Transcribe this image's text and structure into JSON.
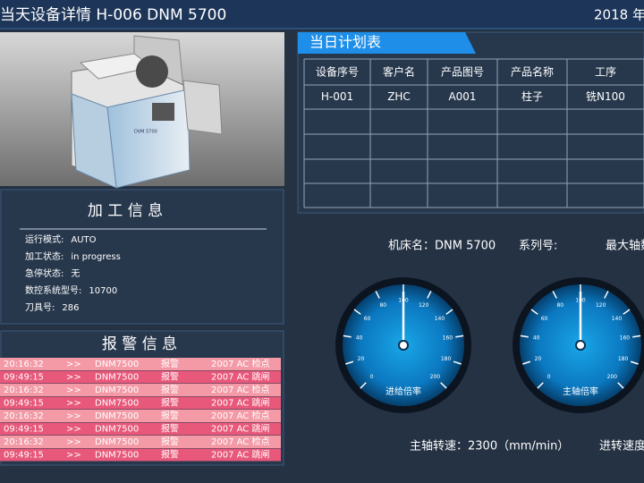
{
  "header": {
    "title": "当天设备详情  H-006   DNM 5700",
    "date": "2018 年"
  },
  "processing_info": {
    "title": "加 工 信 息",
    "items": [
      [
        "运行模式:",
        "AUTO"
      ],
      [
        "加工状态:",
        "in progress"
      ],
      [
        "急停状态:",
        "无"
      ],
      [
        "数控系统型号:",
        "10700"
      ],
      [
        "刀具号:",
        "286"
      ]
    ]
  },
  "alarm_info": {
    "title": "报 警 信 息",
    "rows": [
      [
        "20:16:32",
        ">>",
        "DNM7500",
        "报警",
        "2007  AC 检点"
      ],
      [
        "09:49:15",
        ">>",
        "DNM7500",
        "报警",
        "2007  AC 跳闸"
      ],
      [
        "20:16:32",
        ">>",
        "DNM7500",
        "报警",
        "2007  AC 检点"
      ],
      [
        "09:49:15",
        ">>",
        "DNM7500",
        "报警",
        "2007  AC 跳闸"
      ],
      [
        "20:16:32",
        ">>",
        "DNM7500",
        "报警",
        "2007  AC 检点"
      ],
      [
        "09:49:15",
        ">>",
        "DNM7500",
        "报警",
        "2007  AC 跳闸"
      ],
      [
        "20:16:32",
        ">>",
        "DNM7500",
        "报警",
        "2007  AC 检点"
      ],
      [
        "09:49:15",
        ">>",
        "DNM7500",
        "报警",
        "2007  AC 跳闸"
      ]
    ]
  },
  "plan_table": {
    "title": "当日计划表",
    "columns": [
      "设备序号",
      "客户名",
      "产品图号",
      "产品名称",
      "工序"
    ],
    "rows": [
      [
        "H-001",
        "ZHC",
        "A001",
        "柱子",
        "铣N100"
      ]
    ]
  },
  "machine_info": {
    "name": "机床名：DNM 5700",
    "series": "系列号:",
    "max_axes": "最大轴数"
  },
  "gauges": [
    {
      "label": "进给倍率",
      "range": [
        0,
        200
      ],
      "ticks": [
        0,
        20,
        40,
        60,
        80,
        100,
        120,
        140,
        160,
        180,
        200
      ],
      "value": 100
    },
    {
      "label": "主轴倍率",
      "range": [
        0,
        200
      ],
      "ticks": [
        0,
        20,
        40,
        60,
        80,
        100,
        120,
        140,
        160,
        180,
        200
      ],
      "value": 100
    }
  ],
  "footer": {
    "spindle_speed": "主轴转速：2300（mm/min）",
    "feed_speed": "进转速度"
  }
}
